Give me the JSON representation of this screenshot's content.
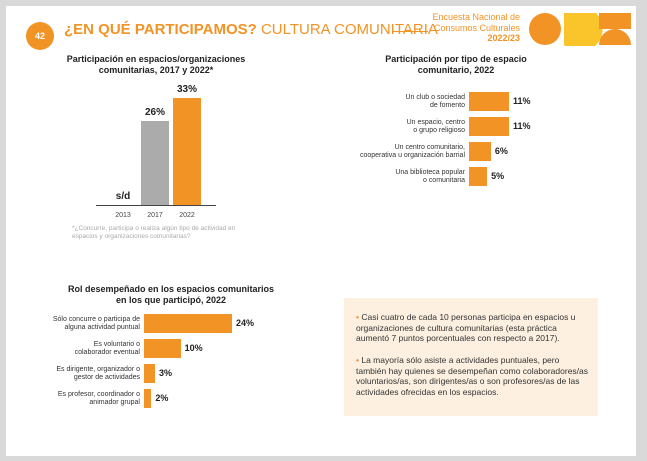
{
  "header": {
    "page_number": "42",
    "title_bold": "¿EN QUÉ PARTICIPAMOS?",
    "title_light": "CULTURA COMUNITARIA",
    "survey_line1": "Encuesta Nacional de",
    "survey_line2": "Consumos Culturales",
    "survey_year": "2022/23"
  },
  "chart1": {
    "title_line1": "Participación en espacios/organizaciones",
    "title_line2": "comunitarias, 2017 y 2022*",
    "note_line1": "*¿Concurre, participa o realiza algún tipo de actividad en",
    "note_line2": "espacios y organizaciones comunitarias?"
  },
  "chart2": {
    "title_line1": "Participación por tipo de espacio",
    "title_line2": "comunitario, 2022"
  },
  "chart3": {
    "title_line1": "Rol desempeñado en los espacios comunitarios",
    "title_line2": "en los que participó, 2022"
  },
  "chart_data": [
    {
      "type": "bar",
      "title": "Participación en espacios/organizaciones comunitarias, 2017 y 2022*",
      "categories": [
        "2013",
        "2017",
        "2022"
      ],
      "values": [
        null,
        26,
        33
      ],
      "value_labels": [
        "s/d",
        "26%",
        "33%"
      ],
      "colors": [
        "#f29325",
        "#ababab",
        "#f29325"
      ],
      "ylim": [
        0,
        33
      ]
    },
    {
      "type": "bar",
      "orientation": "horizontal",
      "title": "Participación por tipo de espacio comunitario, 2022",
      "categories": [
        [
          "Un club o sociedad",
          "de fomento"
        ],
        [
          "Un espacio, centro",
          "o grupo religioso"
        ],
        [
          "Un centro comunitario,",
          "cooperativa u organización barrial"
        ],
        [
          "Una biblioteca popular",
          "o comunitaria"
        ]
      ],
      "values": [
        11,
        11,
        6,
        5
      ],
      "value_labels": [
        "11%",
        "11%",
        "6%",
        "5%"
      ],
      "xlim": [
        0,
        11
      ]
    },
    {
      "type": "bar",
      "orientation": "horizontal",
      "title": "Rol desempeñado en los espacios comunitarios en los que participó, 2022",
      "categories": [
        [
          "Sólo concurre o participa de",
          "alguna actividad puntual"
        ],
        [
          "Es voluntario o",
          "colaborador eventual"
        ],
        [
          "Es dirigente, organizador o",
          "gestor de actividades"
        ],
        [
          "Es profesor, coordinador o",
          "animador grupal"
        ]
      ],
      "values": [
        24,
        10,
        3,
        2
      ],
      "value_labels": [
        "24%",
        "10%",
        "3%",
        "2%"
      ],
      "xlim": [
        0,
        24
      ]
    }
  ],
  "summary": {
    "bullet1": "Casi cuatro de cada 10 personas participa en espacios u organizaciones de cultura comunitarias (esta práctica aumentó 7 puntos porcentuales con respecto a 2017).",
    "bullet2": "La mayoría sólo asiste a actividades puntuales, pero también hay quienes se desempeñan como colaboradores/as voluntarios/as, son dirigentes/as o son profesores/as de las actividades ofrecidas en los espacios."
  },
  "colors": {
    "accent": "#f29325",
    "secondary": "#ababab",
    "box_bg": "#fdf0e0"
  }
}
